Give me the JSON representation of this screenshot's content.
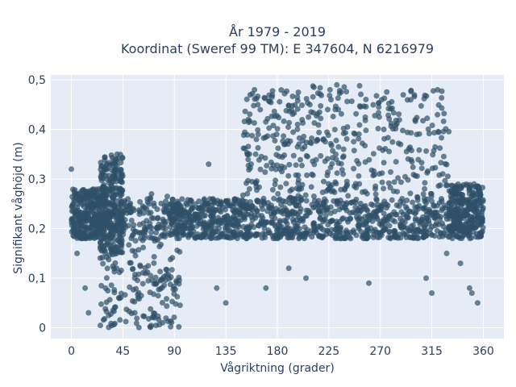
{
  "chart_data": {
    "type": "scatter",
    "title_line1": "År 1979 - 2019",
    "title_line2": "Koordinat (Sweref 99 TM): E 347604, N 6216979",
    "xlabel": "Vågriktning (grader)",
    "ylabel": "Signifikant våghöjd (m)",
    "xlim": [
      -18,
      378
    ],
    "ylim": [
      -0.022,
      0.51
    ],
    "xticks": [
      0,
      45,
      90,
      135,
      180,
      225,
      270,
      315,
      360
    ],
    "xtick_labels": [
      "0",
      "45",
      "90",
      "135",
      "180",
      "225",
      "270",
      "315",
      "360"
    ],
    "yticks": [
      0,
      0.1,
      0.2,
      0.3,
      0.4,
      0.5
    ],
    "ytick_labels": [
      "0",
      "0,1",
      "0,2",
      "0,3",
      "0,4",
      "0,5"
    ],
    "grid": true,
    "marker_color": "#2e5068",
    "background_color": "#e5ecf6",
    "clusters": [
      {
        "x_range": [
          0,
          30
        ],
        "y_range": [
          0.18,
          0.28
        ]
      },
      {
        "x_range": [
          25,
          45
        ],
        "y_range": [
          0.15,
          0.35
        ]
      },
      {
        "x_range": [
          25,
          95
        ],
        "y_range": [
          0.0,
          0.27
        ]
      },
      {
        "x_range": [
          85,
          155
        ],
        "y_range": [
          0.18,
          0.26
        ]
      },
      {
        "x_range": [
          150,
          200
        ],
        "y_range": [
          0.18,
          0.48
        ]
      },
      {
        "x_range": [
          200,
          260
        ],
        "y_range": [
          0.18,
          0.49
        ]
      },
      {
        "x_range": [
          260,
          330
        ],
        "y_range": [
          0.18,
          0.48
        ]
      },
      {
        "x_range": [
          330,
          360
        ],
        "y_range": [
          0.18,
          0.29
        ]
      }
    ],
    "sample_points": [
      {
        "x": 0,
        "y": 0.32
      },
      {
        "x": 5,
        "y": 0.15
      },
      {
        "x": 12,
        "y": 0.08
      },
      {
        "x": 15,
        "y": 0.03
      },
      {
        "x": 40,
        "y": 0.35
      },
      {
        "x": 70,
        "y": 0.27
      },
      {
        "x": 120,
        "y": 0.33
      },
      {
        "x": 127,
        "y": 0.08
      },
      {
        "x": 135,
        "y": 0.05
      },
      {
        "x": 160,
        "y": 0.48
      },
      {
        "x": 165,
        "y": 0.44
      },
      {
        "x": 170,
        "y": 0.08
      },
      {
        "x": 190,
        "y": 0.12
      },
      {
        "x": 205,
        "y": 0.1
      },
      {
        "x": 226,
        "y": 0.48
      },
      {
        "x": 232,
        "y": 0.49
      },
      {
        "x": 260,
        "y": 0.09
      },
      {
        "x": 290,
        "y": 0.47
      },
      {
        "x": 310,
        "y": 0.1
      },
      {
        "x": 315,
        "y": 0.07
      },
      {
        "x": 320,
        "y": 0.48
      },
      {
        "x": 328,
        "y": 0.15
      },
      {
        "x": 340,
        "y": 0.13
      },
      {
        "x": 348,
        "y": 0.08
      },
      {
        "x": 350,
        "y": 0.07
      },
      {
        "x": 355,
        "y": 0.05
      }
    ]
  }
}
